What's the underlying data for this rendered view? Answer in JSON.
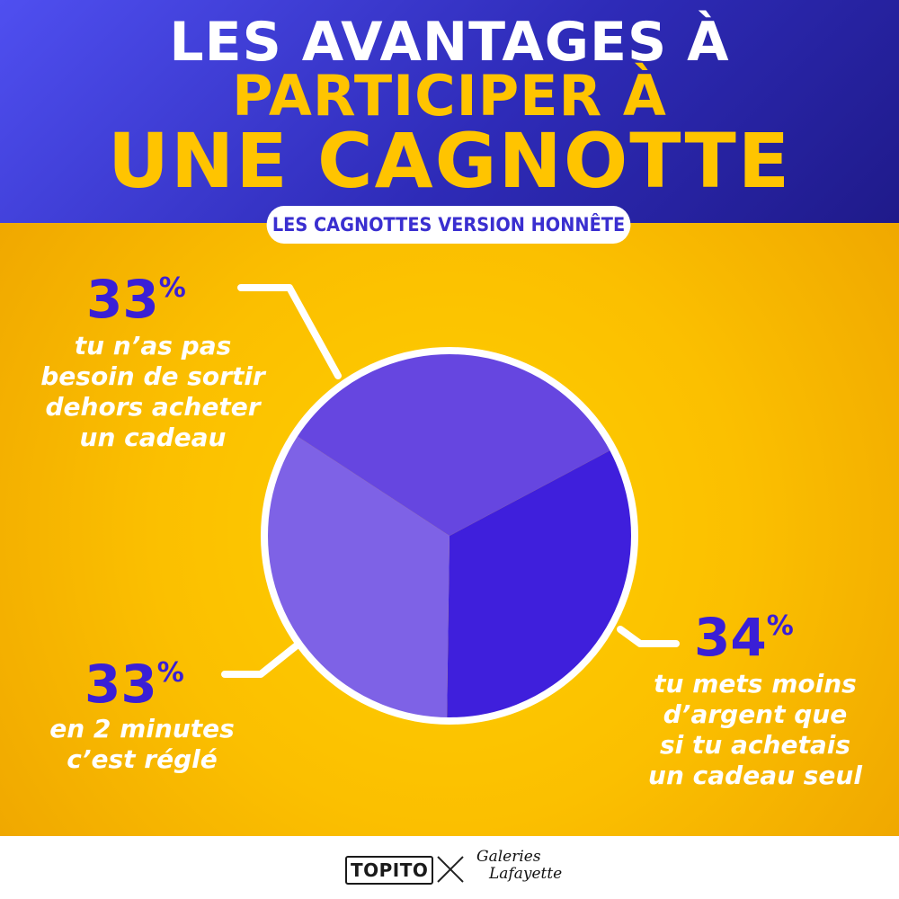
{
  "header": {
    "title_line_1": "LES AVANTAGES À",
    "title_line_2": "PARTICIPER À",
    "title_line_3": "UNE CAGNOTTE",
    "subtitle": "LES CAGNOTTES VERSION HONNÊTE"
  },
  "chart_data": {
    "type": "pie",
    "slices": [
      {
        "value": 33,
        "label": "33",
        "unit": "%",
        "description": "tu n’as pas\nbesoin de sortir\ndehors acheter\nun cadeau",
        "color": "#3f1fdc"
      },
      {
        "value": 34,
        "label": "34",
        "unit": "%",
        "description": "tu mets moins\nd’argent que\nsi tu achetais\nun cadeau seul",
        "color": "#7e62e6"
      },
      {
        "value": 33,
        "label": "33",
        "unit": "%",
        "description": "en 2 minutes\nc’est réglé",
        "color": "#6646e0"
      }
    ],
    "colors": {
      "background": "#f5b800",
      "header": "#2e2bb8",
      "title_accent": "#ffc400",
      "percent_text": "#3a1fd6",
      "leader_line": "#ffffff"
    }
  },
  "footer": {
    "brand_1": "TOPITO",
    "brand_2_line_1": "Galeries",
    "brand_2_line_2": "Lafayette",
    "separator_icon": "cross-icon"
  }
}
